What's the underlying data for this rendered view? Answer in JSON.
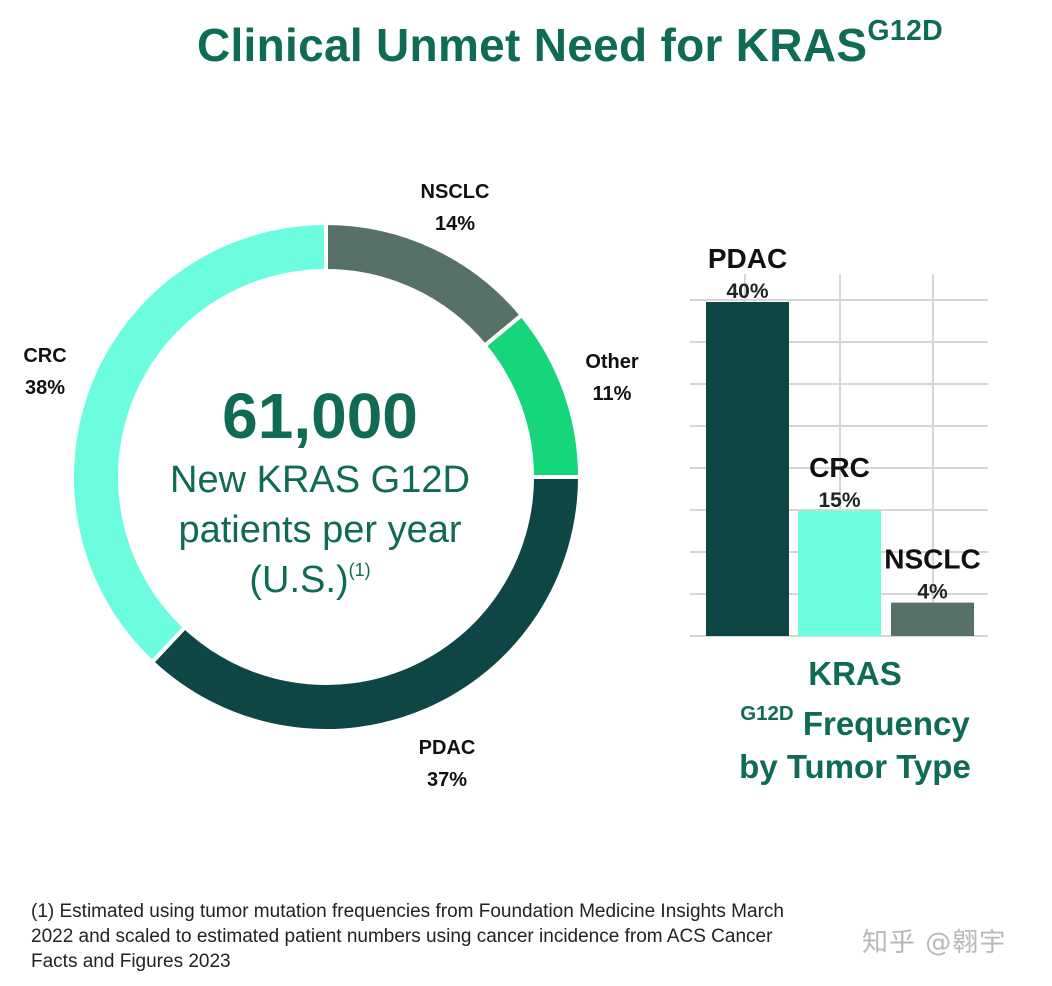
{
  "title": {
    "main": "Clinical Unmet Need for KRAS",
    "sup": "G12D"
  },
  "chart_data": [
    {
      "type": "pie",
      "categories": [
        "NSCLC",
        "Other",
        "PDAC",
        "CRC"
      ],
      "values": [
        14,
        11,
        37,
        38
      ],
      "value_labels": [
        "14%",
        "11%",
        "37%",
        "38%"
      ],
      "colors": [
        "#577068",
        "#16d67c",
        "#0e4545",
        "#6cfddf"
      ],
      "center": {
        "big_number": "61,000",
        "line1": "New KRAS G12D",
        "line2": "patients per year",
        "line3": "(U.S.)",
        "line3_sup": "(1)"
      }
    },
    {
      "type": "bar",
      "categories": [
        "PDAC",
        "CRC",
        "NSCLC"
      ],
      "values": [
        40,
        15,
        4
      ],
      "value_labels": [
        "40%",
        "15%",
        "4%"
      ],
      "colors": [
        "#0e4545",
        "#6cfddf",
        "#577068"
      ],
      "title": {
        "line1_main": "KRAS",
        "line1_sup": "G12D",
        "line1_rest": " Frequency",
        "line2": "by Tumor Type"
      },
      "ylim": [
        0,
        40
      ],
      "grid": true
    }
  ],
  "footnote": {
    "lines": [
      "(1) Estimated using tumor mutation frequencies from Foundation Medicine Insights March",
      "2022 and scaled to estimated patient numbers using cancer incidence from ACS Cancer",
      "Facts and Figures 2023"
    ]
  },
  "watermark": "知乎 @翱宇"
}
